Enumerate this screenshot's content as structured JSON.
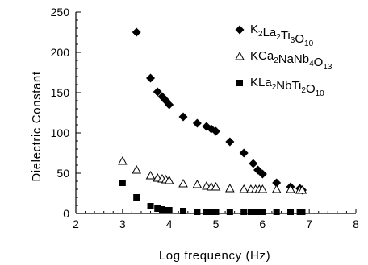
{
  "chart_data": {
    "type": "scatter",
    "xlabel": "Log frequency (Hz)",
    "ylabel": "Dielectric Constant",
    "xlim": [
      2,
      8
    ],
    "ylim": [
      0,
      250
    ],
    "xticks": [
      "2",
      "3",
      "4",
      "5",
      "6",
      "7",
      "8"
    ],
    "yticks": [
      "0",
      "50",
      "100",
      "150",
      "200",
      "250"
    ],
    "grid": false,
    "legend": "top-right",
    "series": [
      {
        "name": "K2La2Ti3O10",
        "marker": "diamond",
        "color": "#000000",
        "x": [
          3.3,
          3.6,
          3.75,
          3.85,
          3.93,
          4.0,
          4.3,
          4.6,
          4.8,
          4.9,
          5.0,
          5.3,
          5.6,
          5.8,
          5.9,
          6.0,
          6.3,
          6.6,
          6.8,
          6.85
        ],
        "y": [
          225,
          168,
          151,
          145,
          140,
          135,
          120,
          112,
          108,
          105,
          102,
          89,
          75,
          62,
          54,
          49,
          38,
          33,
          31,
          29
        ]
      },
      {
        "name": "KCa2NaNb4O13",
        "marker": "triangle-open",
        "color": "#000000",
        "x": [
          3.0,
          3.3,
          3.6,
          3.75,
          3.85,
          3.93,
          4.0,
          4.3,
          4.6,
          4.8,
          4.9,
          5.0,
          5.3,
          5.6,
          5.75,
          5.85,
          5.93,
          6.0,
          6.3,
          6.6,
          6.8,
          6.85
        ],
        "y": [
          65,
          54,
          47,
          44,
          43,
          42,
          41,
          37,
          36,
          34,
          33,
          33,
          31,
          30,
          30,
          30,
          30,
          30,
          30,
          30,
          29,
          29
        ]
      },
      {
        "name": "KLa2NbTi2O10",
        "marker": "square",
        "color": "#000000",
        "x": [
          3.0,
          3.3,
          3.6,
          3.75,
          3.85,
          3.93,
          4.0,
          4.3,
          4.6,
          4.8,
          4.9,
          5.0,
          5.3,
          5.6,
          5.75,
          5.85,
          5.93,
          6.0,
          6.3,
          6.6,
          6.8,
          6.85
        ],
        "y": [
          38,
          20,
          9,
          6,
          5,
          4,
          4,
          3,
          2,
          2,
          2,
          2,
          2,
          2,
          2,
          2,
          2,
          2,
          2,
          2,
          2,
          2
        ]
      }
    ],
    "legend_entries": [
      {
        "base": [
          "K",
          "La",
          "Ti",
          "O"
        ],
        "subs": [
          "2",
          "2",
          "3",
          "10"
        ]
      },
      {
        "base": [
          "KCa",
          "NaNb",
          "O"
        ],
        "subs": [
          "2",
          "4",
          "13"
        ]
      },
      {
        "base": [
          "KLa",
          "NbTi",
          "O"
        ],
        "subs": [
          "2",
          "2",
          "10"
        ]
      }
    ]
  }
}
